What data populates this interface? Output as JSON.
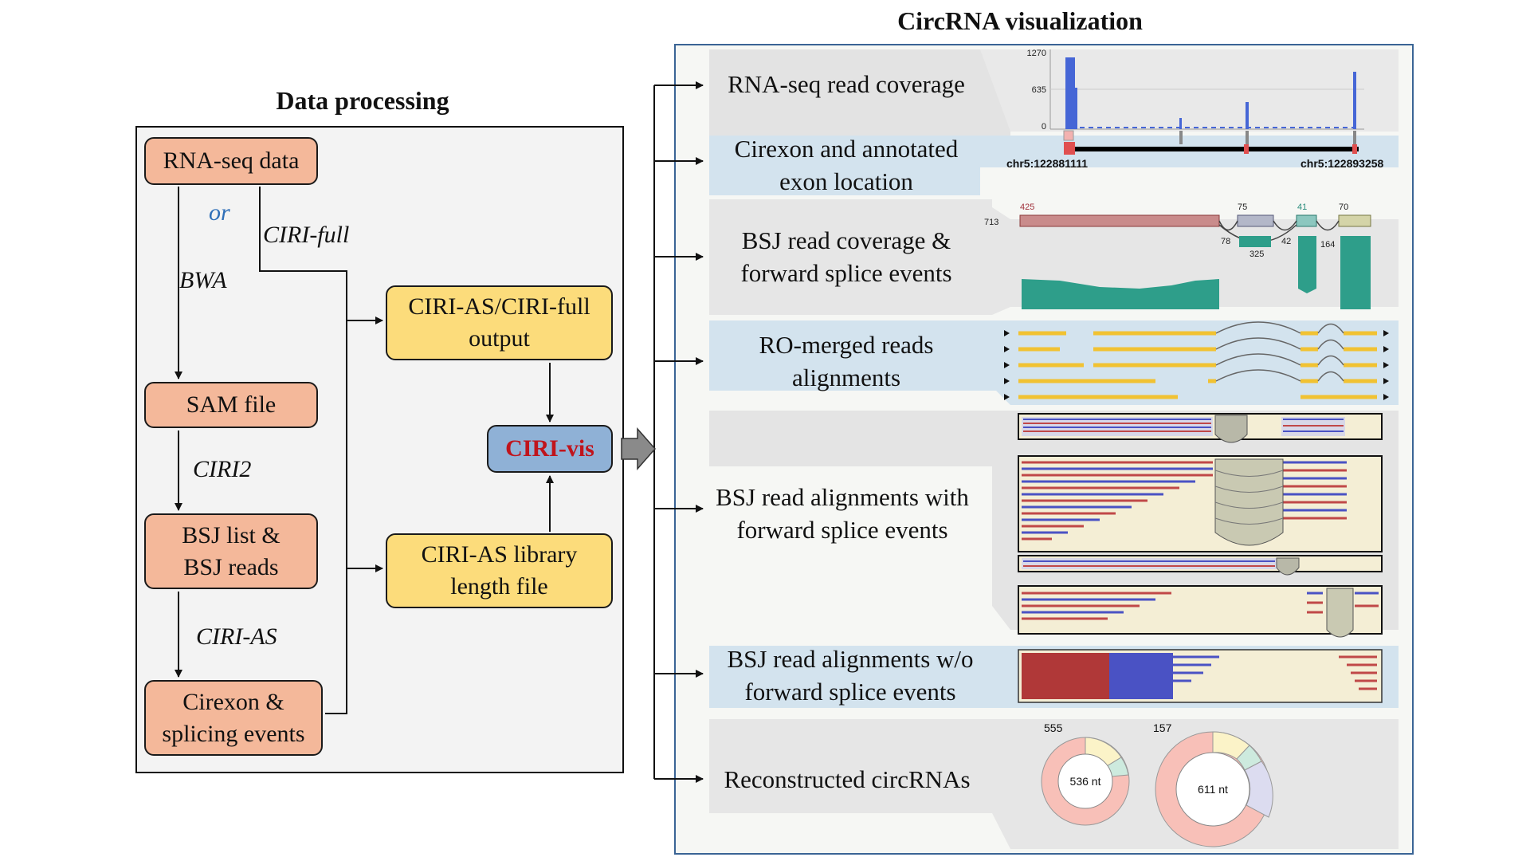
{
  "titles": {
    "data_processing": "Data processing",
    "visualization": "CircRNA visualization"
  },
  "nodes": {
    "rnaseq": "RNA-seq data",
    "sam": "SAM file",
    "bsj_line1": "BSJ list &",
    "bsj_line2": "BSJ reads",
    "cirexon_line1": "Cirexon &",
    "cirexon_line2": "splicing events",
    "ciriout_line1": "CIRI-AS/CIRI-full",
    "ciriout_line2": "output",
    "library_line1": "CIRI-AS library",
    "library_line2": "length file",
    "cirivis": "CIRI-vis"
  },
  "edge_labels": {
    "or": "or",
    "bwa": "BWA",
    "cirifull": "CIRI-full",
    "ciri2": "CIRI2",
    "ciri_as": "CIRI-AS"
  },
  "panels": {
    "coverage": "RNA-seq read coverage",
    "cirexon_line1": "Cirexon and annotated",
    "cirexon_line2": "exon location",
    "bsj_cov_line1": "BSJ read coverage &",
    "bsj_cov_line2": "forward splice events",
    "ro_line1": "RO-merged reads",
    "ro_line2": "alignments",
    "bsj_align_line1": "BSJ read alignments with",
    "bsj_align_line2": "forward splice events",
    "bsj_wo_line1": "BSJ read alignments w/o",
    "bsj_wo_line2": "forward splice events",
    "reconstructed": "Reconstructed circRNAs"
  },
  "coverage_axis": {
    "top": "1270",
    "mid": "635",
    "zero": "0"
  },
  "loci": {
    "start": "chr5:122881111",
    "end": "chr5:122893258"
  },
  "bsj_numbers": {
    "left": "713",
    "exon1": "425",
    "exon2": "75",
    "exon3": "41",
    "exon4": "70",
    "junc1": "78",
    "junc2": "42",
    "junc3": "164",
    "backsplice": "325"
  },
  "circ1": {
    "count": "555",
    "length": "536 nt"
  },
  "circ2": {
    "count": "157",
    "length": "611 nt"
  },
  "colors": {
    "orange_node": "#f4b89a",
    "yellow_node": "#fcdc7b",
    "blue_node": "#8fb1d6",
    "ciri_vis_text": "#c0141c",
    "or_text": "#2f6fb8",
    "viz_border": "#3a6495"
  }
}
